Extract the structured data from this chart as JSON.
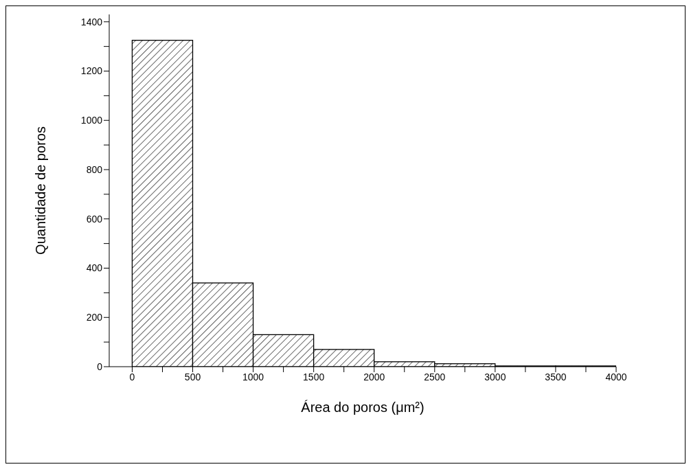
{
  "chart_data": {
    "type": "histogram",
    "xlabel": "Área do poros (μm²)",
    "ylabel": "Quantidade de poros",
    "bins": [
      0,
      500,
      1000,
      1500,
      2000,
      2500,
      3000,
      3500,
      4000
    ],
    "values": [
      1325,
      340,
      130,
      70,
      20,
      12,
      3,
      3
    ],
    "color": "#000000",
    "xlim": [
      -190,
      4000
    ],
    "xticks": [
      0,
      {
        "value": 250,
        "label": null
      },
      500,
      {
        "value": 750,
        "label": null
      },
      1000,
      {
        "value": 1250,
        "label": null
      },
      1500,
      {
        "value": 1750,
        "label": null
      },
      2000,
      {
        "value": 2250,
        "label": null
      },
      2500,
      {
        "value": 2750,
        "label": null
      },
      3000,
      {
        "value": 3250,
        "label": null
      },
      3500,
      {
        "value": 3750,
        "label": null
      },
      4000
    ],
    "ylim": [
      0,
      1430
    ],
    "yticks": [
      0,
      {
        "value": 100,
        "label": null
      },
      200,
      {
        "value": 300,
        "label": null
      },
      400,
      {
        "value": 500,
        "label": null
      },
      600,
      {
        "value": 700,
        "label": null
      },
      800,
      {
        "value": 900,
        "label": null
      },
      1000,
      {
        "value": 1100,
        "label": null
      },
      1200,
      {
        "value": 1300,
        "label": null
      },
      1400
    ],
    "grid": false
  }
}
